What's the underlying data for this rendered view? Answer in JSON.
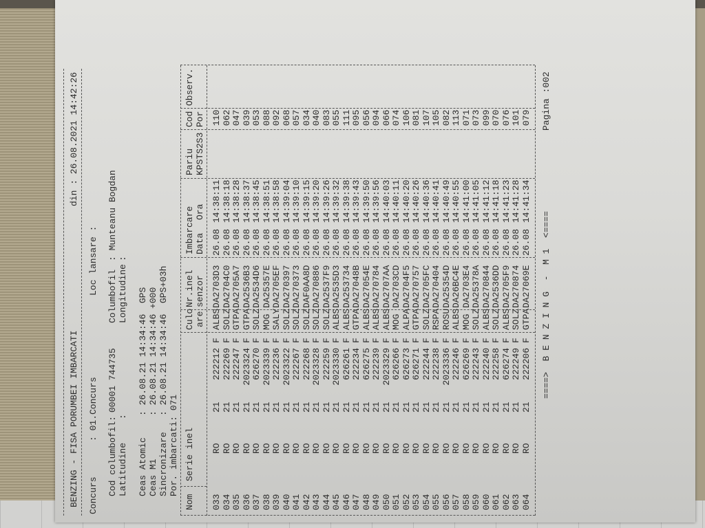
{
  "header": {
    "title": "BENZING - FISA PORUMBEI IMBARCATI",
    "date": "din : 26.08.2021 14:42:26",
    "concurs_label": "Concurs",
    "concurs_value": ": 01.Concurs",
    "loc_lansare": "Loc lansare :",
    "cod_label": "Cod columbofil:",
    "cod_value": "00001 744735",
    "columbofil_label": "Columbofil",
    "columbofil_value": ": Munteanu Bogdan",
    "latitudine_label": "Latitudine",
    "latitudine_value": ":",
    "longitudine_label": "Longitudine",
    "longitudine_value": ":",
    "ceas_atomic": "Ceas Atomic    : 26.08.21 14:34:46  GPS",
    "ceas_m1": "Ceas M1        : 26.08.21 14:34:46 +000",
    "sincronizare": "Sincronizare   : 26.08.21 14:34:46  GPS+03h",
    "por_imbarcati": "Por. imbarcati: 071"
  },
  "columns": {
    "nom": "Nom",
    "serie": "Serie inel",
    "culoare1": "Culo",
    "culoare2": "are",
    "inel1": "Nr.inel",
    "inel2": "senzor",
    "imbarcare": "Imbarcare",
    "data": "Data",
    "ora": "Ora",
    "pariu1": "Pariu",
    "pariu2": "KPSTS2S3",
    "cod1": "Cod",
    "cod2": "Por",
    "observ": "Observ."
  },
  "rows": [
    [
      "033",
      "RO",
      "21",
      "222212",
      "F",
      "ALBS",
      "DA2703D3",
      "26.08",
      "14:38:11",
      "",
      "110",
      ""
    ],
    [
      "034",
      "RO",
      "21",
      "222269",
      "F",
      "SOLZ",
      "DA2704C0",
      "26.08",
      "14:38:18",
      "",
      "062",
      ""
    ],
    [
      "035",
      "RO",
      "21",
      "222247",
      "F",
      "GTPA",
      "DA2705A7",
      "26.08",
      "14:38:28",
      "",
      "047",
      ""
    ],
    [
      "036",
      "RO",
      "21",
      "2023324",
      "F",
      "GTPA",
      "DA2536B3",
      "26.08",
      "14:38:37",
      "",
      "039",
      ""
    ],
    [
      "037",
      "RO",
      "21",
      "626270",
      "F",
      "SOLZ",
      "DA2534D6",
      "26.08",
      "14:38:45",
      "",
      "053",
      ""
    ],
    [
      "038",
      "RO",
      "21",
      "2023339",
      "F",
      "MOG",
      "DA25357E",
      "26.08",
      "14:38:51",
      "",
      "088",
      ""
    ],
    [
      "039",
      "RO",
      "21",
      "222236",
      "F",
      "SALY",
      "DA2705EF",
      "26.08",
      "14:38:58",
      "",
      "092",
      ""
    ],
    [
      "040",
      "RO",
      "21",
      "2023322",
      "F",
      "SOLZ",
      "DA270397",
      "26.08",
      "14:39:04",
      "",
      "068",
      ""
    ],
    [
      "041",
      "RO",
      "21",
      "222267",
      "F",
      "SOLZ",
      "DA270373",
      "26.08",
      "14:39:10",
      "",
      "057",
      ""
    ],
    [
      "042",
      "RO",
      "21",
      "222268",
      "F",
      "SOLZ",
      "DAF0AA8D",
      "26.08",
      "14:39:15",
      "",
      "034",
      ""
    ],
    [
      "043",
      "RO",
      "21",
      "2023328",
      "F",
      "SOLZ",
      "DA270886",
      "26.08",
      "14:39:20",
      "",
      "040",
      ""
    ],
    [
      "044",
      "RO",
      "21",
      "222259",
      "F",
      "SOLZ",
      "DA2537F9",
      "26.08",
      "14:39:26",
      "",
      "083",
      ""
    ],
    [
      "045",
      "RO",
      "21",
      "2023330",
      "F",
      "ALBS",
      "DA2535D3",
      "26.08",
      "14:39:32",
      "",
      "055",
      ""
    ],
    [
      "046",
      "RO",
      "21",
      "626261",
      "F",
      "ALBS",
      "DA253734",
      "26.08",
      "14:39:38",
      "",
      "111",
      ""
    ],
    [
      "047",
      "RO",
      "21",
      "222234",
      "F",
      "GTPA",
      "DA27048B",
      "26.08",
      "14:39:43",
      "",
      "095",
      ""
    ],
    [
      "048",
      "RO",
      "21",
      "626275",
      "F",
      "ALBS",
      "DA27054E",
      "26.08",
      "14:39:50",
      "",
      "056",
      ""
    ],
    [
      "049",
      "RO",
      "21",
      "222239",
      "F",
      "ALBS",
      "DA270784",
      "26.08",
      "14:39:56",
      "",
      "094",
      ""
    ],
    [
      "050",
      "RO",
      "21",
      "2023329",
      "F",
      "ALBS",
      "DA2707AA",
      "26.08",
      "14:40:03",
      "",
      "066",
      ""
    ],
    [
      "051",
      "RO",
      "21",
      "626266",
      "F",
      "MOG",
      "DA2703CD",
      "26.08",
      "14:40:11",
      "",
      "074",
      ""
    ],
    [
      "052",
      "RO",
      "21",
      "626273",
      "F",
      "ALPA",
      "DA2704F5",
      "26.08",
      "14:40:20",
      "",
      "106",
      ""
    ],
    [
      "053",
      "RO",
      "21",
      "626271",
      "F",
      "GTPA",
      "DA270757",
      "26.08",
      "14:40:26",
      "",
      "081",
      ""
    ],
    [
      "054",
      "RO",
      "21",
      "222244",
      "F",
      "SOLZ",
      "DA2705FC",
      "26.08",
      "14:40:36",
      "",
      "107",
      ""
    ],
    [
      "055",
      "RO",
      "21",
      "222238",
      "F",
      "RSPA",
      "DA270404",
      "26.08",
      "14:40:41",
      "",
      "105",
      ""
    ],
    [
      "056",
      "RO",
      "21",
      "2023336",
      "F",
      "ROSU",
      "DA25354D",
      "26.08",
      "14:40:49",
      "",
      "082",
      ""
    ],
    [
      "057",
      "RO",
      "21",
      "222246",
      "F",
      "ALBS",
      "DA26BC4E",
      "26.08",
      "14:40:55",
      "",
      "113",
      ""
    ],
    [
      "058",
      "RO",
      "21",
      "626269",
      "F",
      "MOG",
      "DA2703E4",
      "26.08",
      "14:41:00",
      "",
      "071",
      ""
    ],
    [
      "059",
      "RO",
      "21",
      "222243",
      "F",
      "SOLZ",
      "DA25378A",
      "26.08",
      "14:41:05",
      "",
      "073",
      ""
    ],
    [
      "060",
      "RO",
      "21",
      "222240",
      "F",
      "ALBS",
      "DA270844",
      "26.08",
      "14:41:12",
      "",
      "099",
      ""
    ],
    [
      "061",
      "RO",
      "21",
      "222258",
      "F",
      "SOLZ",
      "DA2536DD",
      "26.08",
      "14:41:18",
      "",
      "070",
      ""
    ],
    [
      "062",
      "RO",
      "21",
      "626274",
      "F",
      "ALBS",
      "DA2705F9",
      "26.08",
      "14:41:23",
      "",
      "076",
      ""
    ],
    [
      "063",
      "RO",
      "21",
      "222249",
      "F",
      "SOLZ",
      "DA270874",
      "26.08",
      "14:41:28",
      "",
      "101",
      ""
    ],
    [
      "064",
      "RO",
      "21",
      "222206",
      "F",
      "GTPA",
      "DA27069E",
      "26.08",
      "14:41:34",
      "",
      "079",
      ""
    ]
  ],
  "footer": {
    "banner": "====>  B E N Z I N G  -  M 1  <====",
    "page": "Pagina :002"
  }
}
